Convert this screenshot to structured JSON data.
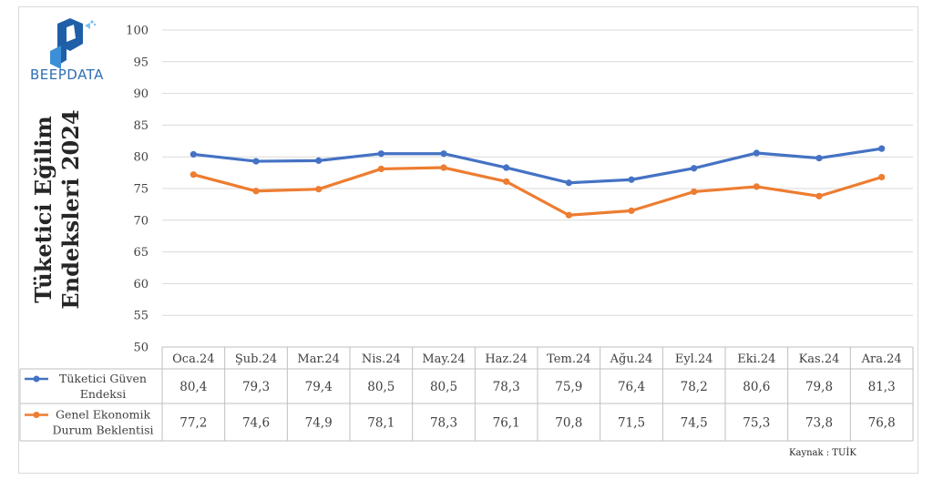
{
  "brand": {
    "name": "BEEPDATA"
  },
  "source_note": "Kaynak : TUİK",
  "chart_data": {
    "type": "line",
    "title": "Tüketici Eğilim Endeksleri 2024",
    "title_lines": [
      "Tüketici Eğilim",
      "Endeksleri 2024"
    ],
    "categories": [
      "Oca.24",
      "Şub.24",
      "Mar.24",
      "Nis.24",
      "May.24",
      "Haz.24",
      "Tem.24",
      "Ağu.24",
      "Eyl.24",
      "Eki.24",
      "Kas.24",
      "Ara.24"
    ],
    "ylim": [
      50,
      100
    ],
    "yticks": [
      50,
      55,
      60,
      65,
      70,
      75,
      80,
      85,
      90,
      95,
      100
    ],
    "grid": true,
    "legend": "data-table",
    "series": [
      {
        "name": "Tüketici Güven Endeksi",
        "label_lines": [
          "Tüketici Güven",
          "Endeksi"
        ],
        "color": "#4472c4",
        "values": [
          80.4,
          79.3,
          79.4,
          80.5,
          80.5,
          78.3,
          75.9,
          76.4,
          78.2,
          80.6,
          79.8,
          81.3
        ],
        "display": [
          "80,4",
          "79,3",
          "79,4",
          "80,5",
          "80,5",
          "78,3",
          "75,9",
          "76,4",
          "78,2",
          "80,6",
          "79,8",
          "81,3"
        ]
      },
      {
        "name": "Genel Ekonomik Durum Beklentisi",
        "label_lines": [
          "Genel Ekonomik",
          "Durum Beklentisi"
        ],
        "color": "#ed7d31",
        "values": [
          77.2,
          74.6,
          74.9,
          78.1,
          78.3,
          76.1,
          70.8,
          71.5,
          74.5,
          75.3,
          73.8,
          76.8
        ],
        "display": [
          "77,2",
          "74,6",
          "74,9",
          "78,1",
          "78,3",
          "76,1",
          "70,8",
          "71,5",
          "74,5",
          "75,3",
          "73,8",
          "76,8"
        ]
      }
    ]
  }
}
